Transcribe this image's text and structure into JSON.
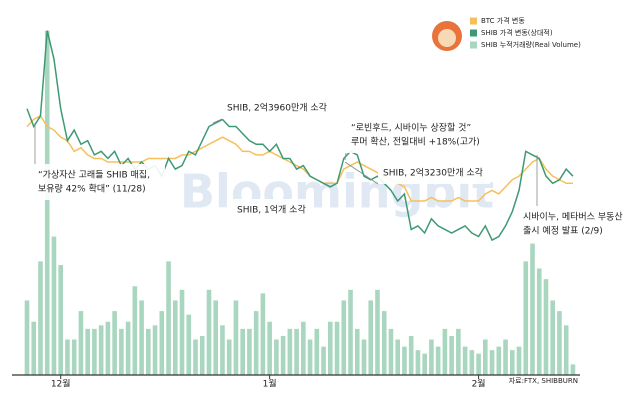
{
  "chart_data": {
    "type": "combo",
    "categories": [
      null,
      null,
      null,
      null,
      null,
      "12월",
      null,
      null,
      null,
      null,
      null,
      null,
      null,
      null,
      null,
      null,
      null,
      null,
      null,
      null,
      null,
      null,
      null,
      null,
      null,
      null,
      null,
      null,
      null,
      null,
      null,
      null,
      null,
      null,
      null,
      null,
      "1월",
      null,
      null,
      null,
      null,
      null,
      null,
      null,
      null,
      null,
      null,
      null,
      null,
      null,
      null,
      null,
      null,
      null,
      null,
      null,
      null,
      null,
      null,
      null,
      null,
      null,
      null,
      null,
      null,
      null,
      null,
      "2월",
      null,
      null,
      null,
      null,
      null,
      null,
      null,
      null,
      null,
      null,
      null,
      null,
      null,
      null
    ],
    "series": [
      {
        "name": "SHIB 누적거래량(Real Volume)",
        "color": "#a9d6bf",
        "type": "bar",
        "axis": "y2",
        "values": [
          21,
          15,
          32,
          97,
          39,
          31,
          10,
          10,
          18,
          13,
          13,
          14,
          15,
          18,
          13,
          15,
          25,
          21,
          13,
          14,
          18,
          32,
          21,
          24,
          17,
          10,
          11,
          24,
          21,
          14,
          10,
          21,
          13,
          13,
          18,
          23,
          15,
          10,
          11,
          13,
          13,
          15,
          10,
          13,
          8,
          15,
          15,
          21,
          24,
          13,
          10,
          21,
          24,
          18,
          13,
          10,
          8,
          11,
          7,
          6,
          10,
          8,
          13,
          11,
          13,
          8,
          7,
          6,
          10,
          7,
          8,
          10,
          7,
          8,
          32,
          37,
          30,
          27,
          21,
          18,
          14,
          3
        ]
      },
      {
        "name": "BTC 가격 변동",
        "color": "#f5c05a",
        "type": "line",
        "values": [
          70,
          72,
          73,
          70,
          69,
          67,
          66,
          63,
          64,
          62,
          61,
          61,
          60,
          60,
          60,
          60,
          60,
          60,
          61,
          61,
          61,
          61,
          61,
          62,
          62,
          63,
          64,
          65,
          66,
          67,
          66,
          65,
          63,
          63,
          62,
          62,
          63,
          62,
          61,
          60,
          59,
          58,
          56,
          55,
          54,
          54,
          54,
          58,
          59,
          60,
          59,
          58,
          57,
          56,
          55,
          54,
          53,
          49,
          49,
          49,
          50,
          49,
          49,
          49,
          50,
          49,
          49,
          49,
          51,
          52,
          51,
          53,
          55,
          56,
          58,
          60,
          61,
          58,
          56,
          55,
          54,
          54
        ]
      },
      {
        "name": "SHIB 가격 변동(상대적)",
        "color": "#3e9a74",
        "type": "line",
        "values": [
          75,
          70,
          73,
          97,
          89,
          75,
          66,
          69,
          65,
          66,
          62,
          63,
          61,
          63,
          59,
          61,
          58,
          60,
          58,
          59,
          56,
          61,
          58,
          59,
          63,
          62,
          66,
          70,
          71,
          72,
          70,
          70,
          68,
          66,
          65,
          65,
          63,
          65,
          61,
          61,
          58,
          59,
          56,
          55,
          54,
          53,
          54,
          61,
          63,
          62,
          56,
          55,
          56,
          54,
          52,
          49,
          51,
          41,
          42,
          40,
          44,
          42,
          41,
          40,
          41,
          42,
          40,
          39,
          42,
          38,
          39,
          42,
          46,
          52,
          63,
          62,
          61,
          56,
          54,
          55,
          58,
          56
        ]
      }
    ],
    "ylim": [
      0,
      100
    ],
    "y2lim": [
      0,
      100
    ],
    "annotations": [
      {
        "lines": [
          "“가상자산 고래들 SHIB 매집,",
          "보유량 42% 확대” (11/28)"
        ]
      },
      {
        "lines": [
          "SHIB, 2억3960만개 소각"
        ]
      },
      {
        "lines": [
          "“로빈후드, 시바이누 상장할 것”",
          "루머 확산, 전일대비 +18%(고가)"
        ]
      },
      {
        "lines": [
          "SHIB, 2억3230만개 소각"
        ]
      },
      {
        "lines": [
          "SHIB, 1억개 소각"
        ]
      },
      {
        "lines": [
          "시바이누, 메타버스 부동산",
          "출시 예정 발표 (2/9)"
        ]
      }
    ],
    "source": "자료:FTX, SHIBBURN",
    "watermark": "Bloomingbit"
  }
}
